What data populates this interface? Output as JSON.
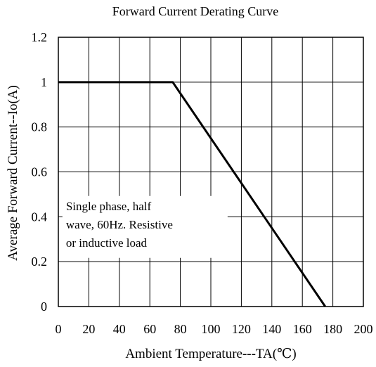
{
  "chart_data": {
    "type": "line",
    "title": "Forward Current Derating Curve",
    "xlabel": "Ambient Temperature---TA(℃)",
    "ylabel": "Average Forward Current--Io(A)",
    "xlim": [
      0,
      200
    ],
    "ylim": [
      0,
      1.2
    ],
    "grid": true,
    "x_ticks": [
      "0",
      "20",
      "40",
      "60",
      "80",
      "100",
      "120",
      "140",
      "160",
      "180",
      "200"
    ],
    "y_ticks": [
      "0",
      "0.2",
      "0.4",
      "0.6",
      "0.8",
      "1",
      "1.2"
    ],
    "series": [
      {
        "x": [
          0,
          75,
          175
        ],
        "y": [
          1.0,
          1.0,
          0.0
        ]
      }
    ],
    "annotation_lines": [
      "Single phase, half",
      "wave, 60Hz.  Resistive",
      "or inductive load"
    ],
    "annotation_anchor": {
      "x": 5,
      "y": 0.43
    },
    "line_color": "#000000",
    "grid_color": "#000000"
  }
}
